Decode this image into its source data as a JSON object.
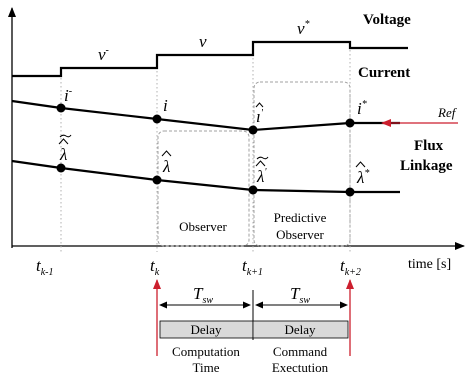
{
  "row_labels": {
    "voltage": "Voltage",
    "current": "Current",
    "flux_line1": "Flux",
    "flux_line2": "Linkage"
  },
  "voltage_labels": {
    "v1_base": "v",
    "v1_sup": "-",
    "v2_base": "v",
    "v3_base": "v",
    "v3_sup": "*"
  },
  "current_labels": {
    "i1_base": "i",
    "i1_sup": "-",
    "i2_base": "i",
    "i3_base": "ı",
    "i3_sup": "'",
    "i4_base": "i",
    "i4_sup": "*"
  },
  "flux_labels": {
    "l1_base": "λ",
    "l2_base": "λ",
    "l3_base": "λ",
    "l3_sup": "'",
    "l4_base": "λ",
    "l4_sup": "*"
  },
  "ref_label": "Ref",
  "boxes": {
    "observer": "Observer",
    "predictive_line1": "Predictive",
    "predictive_line2": "Observer"
  },
  "time_axis": {
    "t_base": "t",
    "ticks": [
      {
        "sub": "k-1"
      },
      {
        "sub": "k"
      },
      {
        "sub": "k+1"
      },
      {
        "sub": "k+2"
      }
    ],
    "axis_label": "time [s]"
  },
  "timing": {
    "tsw_base": "T",
    "tsw_sub": "sw",
    "delay1": "Delay",
    "delay2": "Delay",
    "caption1_line1": "Computation",
    "caption1_line2": "Time",
    "caption2_line1": "Command",
    "caption2_line2": "Exectution"
  },
  "colors": {
    "ref_arrow": "#cc1f2e",
    "delay_fill": "#d9d9d9",
    "box_stroke": "#a0a0a0",
    "guide": "#b0b0b0"
  }
}
